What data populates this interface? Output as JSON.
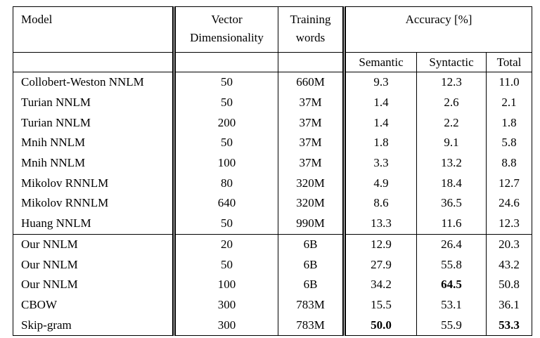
{
  "page": {
    "background": "#ffffff",
    "text_color": "#000000",
    "rule_color": "#000000"
  },
  "table": {
    "headers": {
      "model": "Model",
      "vector_line1": "Vector",
      "vector_line2": "Dimensionality",
      "training_line1": "Training",
      "training_line2": "words",
      "accuracy": "Accuracy [%]",
      "semantic": "Semantic",
      "syntactic": "Syntactic",
      "total": "Total"
    },
    "rows": [
      {
        "model": "Collobert-Weston NNLM",
        "dim": "50",
        "words": "660M",
        "semantic": "9.3",
        "syntactic": "12.3",
        "total": "11.0",
        "bold": [],
        "section_start": false
      },
      {
        "model": "Turian NNLM",
        "dim": "50",
        "words": "37M",
        "semantic": "1.4",
        "syntactic": "2.6",
        "total": "2.1",
        "bold": [],
        "section_start": false
      },
      {
        "model": "Turian NNLM",
        "dim": "200",
        "words": "37M",
        "semantic": "1.4",
        "syntactic": "2.2",
        "total": "1.8",
        "bold": [],
        "section_start": false
      },
      {
        "model": "Mnih NNLM",
        "dim": "50",
        "words": "37M",
        "semantic": "1.8",
        "syntactic": "9.1",
        "total": "5.8",
        "bold": [],
        "section_start": false
      },
      {
        "model": "Mnih NNLM",
        "dim": "100",
        "words": "37M",
        "semantic": "3.3",
        "syntactic": "13.2",
        "total": "8.8",
        "bold": [],
        "section_start": false
      },
      {
        "model": "Mikolov RNNLM",
        "dim": "80",
        "words": "320M",
        "semantic": "4.9",
        "syntactic": "18.4",
        "total": "12.7",
        "bold": [],
        "section_start": false
      },
      {
        "model": "Mikolov RNNLM",
        "dim": "640",
        "words": "320M",
        "semantic": "8.6",
        "syntactic": "36.5",
        "total": "24.6",
        "bold": [],
        "section_start": false
      },
      {
        "model": "Huang NNLM",
        "dim": "50",
        "words": "990M",
        "semantic": "13.3",
        "syntactic": "11.6",
        "total": "12.3",
        "bold": [],
        "section_start": false
      },
      {
        "model": "Our NNLM",
        "dim": "20",
        "words": "6B",
        "semantic": "12.9",
        "syntactic": "26.4",
        "total": "20.3",
        "bold": [],
        "section_start": true
      },
      {
        "model": "Our NNLM",
        "dim": "50",
        "words": "6B",
        "semantic": "27.9",
        "syntactic": "55.8",
        "total": "43.2",
        "bold": [],
        "section_start": false
      },
      {
        "model": "Our NNLM",
        "dim": "100",
        "words": "6B",
        "semantic": "34.2",
        "syntactic": "64.5",
        "total": "50.8",
        "bold": [
          "syntactic"
        ],
        "section_start": false
      },
      {
        "model": "CBOW",
        "dim": "300",
        "words": "783M",
        "semantic": "15.5",
        "syntactic": "53.1",
        "total": "36.1",
        "bold": [],
        "section_start": false
      },
      {
        "model": "Skip-gram",
        "dim": "300",
        "words": "783M",
        "semantic": "50.0",
        "syntactic": "55.9",
        "total": "53.3",
        "bold": [
          "semantic",
          "total"
        ],
        "section_start": false
      }
    ]
  }
}
